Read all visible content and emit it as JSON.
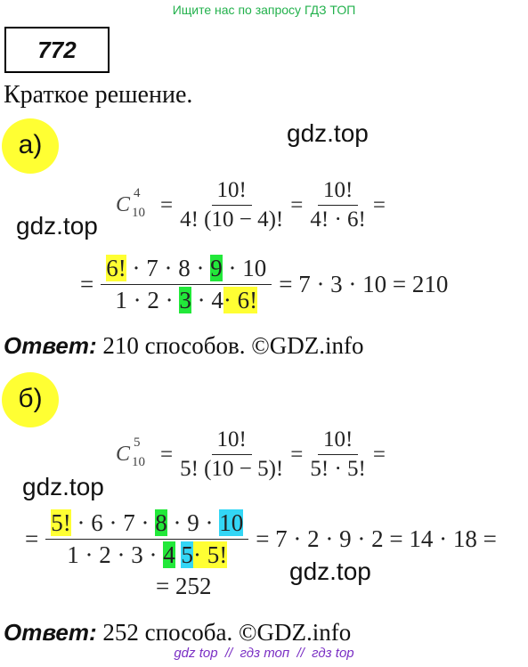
{
  "header": "Ищите нас по запросу ГДЗ ТОП",
  "number": "772",
  "subtitle": "Краткое решение.",
  "watermarks": [
    "gdz.top",
    "gdz.top",
    "gdz.top",
    "gdz.top"
  ],
  "part_a": {
    "label": "а)",
    "line1": {
      "c": "C",
      "sup": "4",
      "sub": "10",
      "eq1": "=",
      "frac1_num": "10!",
      "frac1_den": "4! (10 − 4)!",
      "eq2": "=",
      "frac2_num": "10!",
      "frac2_den": "4! · 6!",
      "eq3": "="
    },
    "line2": {
      "eq": "=",
      "num": [
        "6!",
        " · 7 · 8 · ",
        "9",
        " · 10"
      ],
      "den": [
        "1 · 2 · ",
        "3",
        " · 4",
        "· 6!"
      ],
      "result": "= 7 · 3 · 10 = 210"
    },
    "answer_label": "Ответ:",
    "answer": "210 способов. ©GDZ.info"
  },
  "part_b": {
    "label": "б)",
    "line1": {
      "c": "C",
      "sup": "5",
      "sub": "10",
      "eq1": "=",
      "frac1_num": "10!",
      "frac1_den": "5! (10 − 5)!",
      "eq2": "=",
      "frac2_num": "10!",
      "frac2_den": "5! · 5!",
      "eq3": "="
    },
    "line2": {
      "eq": "=",
      "num": [
        "5!",
        " · 6 · 7 · ",
        "8",
        " · 9 · ",
        "10"
      ],
      "den": [
        "1 · 2 · 3 · ",
        "4",
        "5",
        "· 5!"
      ],
      "result": "= 7 · 2 · 9 · 2 = 14 · 18 =",
      "result2": "= 252"
    },
    "answer_label": "Ответ:",
    "answer": "252 способа. ©GDZ.info"
  },
  "footer": "gdz top  //  гдз топ  //  гдз top"
}
